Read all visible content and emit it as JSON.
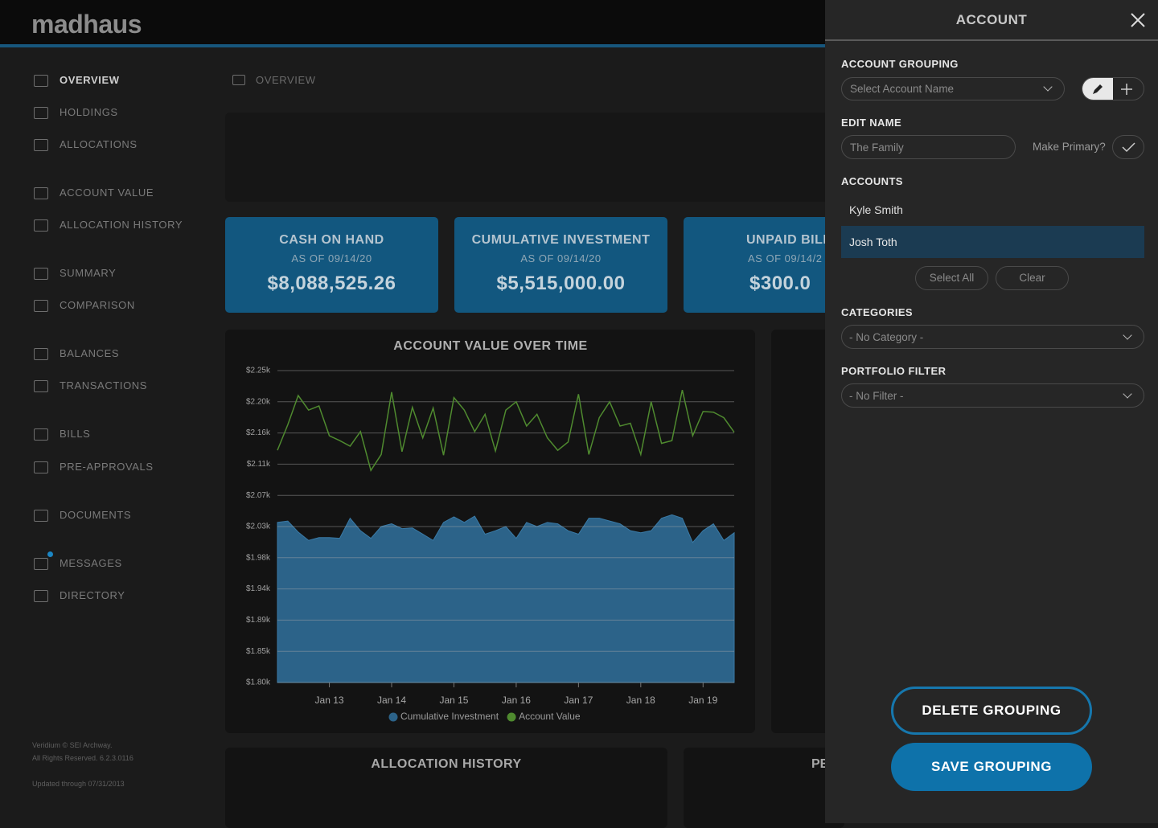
{
  "header": {
    "logo": "madhaus"
  },
  "nav": [
    "OVERVIEW",
    "HOLDINGS",
    "ALLOCATIONS",
    "ACCOUNT VALUE",
    "ALLOCATION HISTORY",
    "SUMMARY",
    "COMPARISON",
    "BALANCES",
    "TRANSACTIONS",
    "BILLS",
    "PRE-APPROVALS",
    "DOCUMENTS",
    "MESSAGES",
    "DIRECTORY"
  ],
  "footer": {
    "line1": "Veridium © SEI Archway.",
    "line2": "All Rights Reserved. 6.2.3.0116",
    "updated": "Updated through 07/31/2013"
  },
  "breadcrumb": "OVERVIEW",
  "cards": [
    {
      "title": "CASH ON HAND",
      "subtitle": "AS OF 09/14/20",
      "value": "$8,088,525.26"
    },
    {
      "title": "CUMULATIVE INVESTMENT",
      "subtitle": "AS OF 09/14/20",
      "value": "$5,515,000.00"
    },
    {
      "title": "UNPAID BILL",
      "subtitle": "AS OF 09/14/2",
      "value": "$300.0"
    }
  ],
  "panels": {
    "allocation_history": "ALLOCATION HISTORY",
    "right": "PE"
  },
  "chart_data": {
    "type": "line",
    "title": "ACCOUNT VALUE OVER TIME",
    "categories": [
      null,
      null,
      null,
      null,
      null,
      "Jan 13",
      null,
      null,
      null,
      null,
      null,
      "Jan 14",
      null,
      null,
      null,
      null,
      null,
      "Jan 15",
      null,
      null,
      null,
      null,
      null,
      "Jan 16",
      null,
      null,
      null,
      null,
      null,
      "Jan 17",
      null,
      null,
      null,
      null,
      null,
      "Jan 18",
      null,
      null,
      null,
      null,
      null,
      "Jan 19",
      null,
      null,
      null
    ],
    "series": [
      {
        "name": "Cumulative Investment",
        "type": "area",
        "color": "#2c6389",
        "values": [
          2031,
          2033,
          2017,
          2005,
          2009,
          2009,
          2008,
          2037,
          2019,
          2008,
          2025,
          2029,
          2022,
          2023,
          2014,
          2005,
          2031,
          2039,
          2031,
          2040,
          2014,
          2019,
          2025,
          2008,
          2031,
          2025,
          2031,
          2029,
          2019,
          2014,
          2037,
          2037,
          2033,
          2029,
          2019,
          2016,
          2019,
          2037,
          2042,
          2037,
          2002,
          2019,
          2029,
          2005,
          2016
        ]
      },
      {
        "name": "Account Value",
        "type": "line",
        "color": "#4f8a2f",
        "values": [
          2135,
          2172,
          2214,
          2193,
          2199,
          2156,
          2149,
          2141,
          2162,
          2106,
          2129,
          2219,
          2133,
          2197,
          2153,
          2196,
          2128,
          2211,
          2193,
          2162,
          2187,
          2134,
          2193,
          2205,
          2170,
          2187,
          2153,
          2135,
          2147,
          2216,
          2129,
          2182,
          2205,
          2170,
          2174,
          2129,
          2205,
          2145,
          2149,
          2222,
          2156,
          2191,
          2190,
          2182,
          2161
        ]
      }
    ],
    "ylim": [
      1800,
      2250
    ],
    "yticks": [
      {
        "value": 1800,
        "label": "$1.80k"
      },
      {
        "value": 1845,
        "label": "$1.85k"
      },
      {
        "value": 1890,
        "label": "$1.89k"
      },
      {
        "value": 1935,
        "label": "$1.94k"
      },
      {
        "value": 1980,
        "label": "$1.98k"
      },
      {
        "value": 2025,
        "label": "$2.03k"
      },
      {
        "value": 2070,
        "label": "$2.07k"
      },
      {
        "value": 2115,
        "label": "$2.11k"
      },
      {
        "value": 2160,
        "label": "$2.16k"
      },
      {
        "value": 2205,
        "label": "$2.20k"
      },
      {
        "value": 2250,
        "label": "$2.25k"
      }
    ],
    "grid": true
  },
  "drawer": {
    "title": "ACCOUNT",
    "grouping_label": "ACCOUNT GROUPING",
    "grouping_placeholder": "Select Account Name",
    "edit_name_label": "EDIT NAME",
    "edit_name_value": "The Family",
    "make_primary": "Make Primary?",
    "accounts_label": "ACCOUNTS",
    "accounts": [
      "Kyle Smith",
      "Josh Toth"
    ],
    "select_all": "Select All",
    "clear": "Clear",
    "categories_label": "CATEGORIES",
    "categories_value": "- No Category -",
    "portfolio_label": "PORTFOLIO FILTER",
    "portfolio_value": "- No Filter -",
    "delete": "DELETE GROUPING",
    "save": "SAVE GROUPING"
  }
}
